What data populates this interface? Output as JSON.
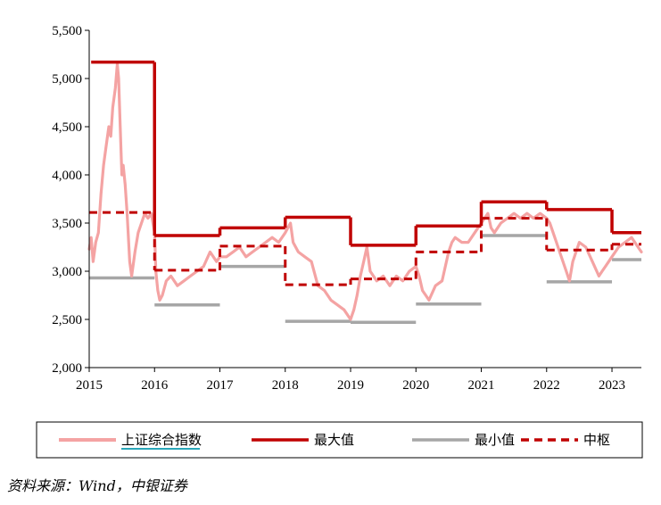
{
  "chart_data": {
    "type": "line",
    "title": "",
    "xlabel": "",
    "ylabel": "",
    "xlim": [
      2015,
      2023.45
    ],
    "ylim": [
      2000,
      5500
    ],
    "yticks": [
      2000,
      2500,
      3000,
      3500,
      4000,
      4500,
      5000,
      5500
    ],
    "ytick_labels": [
      "2,000",
      "2,500",
      "3,000",
      "3,500",
      "4,000",
      "4,500",
      "5,000",
      "5,500"
    ],
    "xticks": [
      2015,
      2016,
      2017,
      2018,
      2019,
      2020,
      2021,
      2022,
      2023
    ],
    "xtick_labels": [
      "2015",
      "2016",
      "2017",
      "2018",
      "2019",
      "2020",
      "2021",
      "2022",
      "2023"
    ],
    "grid": false,
    "legend_position": "bottom",
    "series": [
      {
        "name": "上证综合指数",
        "color": "#f4a3a3",
        "style": "solid-thick",
        "points": [
          [
            2015.0,
            3230
          ],
          [
            2015.03,
            3350
          ],
          [
            2015.06,
            3100
          ],
          [
            2015.1,
            3300
          ],
          [
            2015.14,
            3400
          ],
          [
            2015.18,
            3800
          ],
          [
            2015.22,
            4100
          ],
          [
            2015.26,
            4300
          ],
          [
            2015.3,
            4500
          ],
          [
            2015.33,
            4400
          ],
          [
            2015.36,
            4700
          ],
          [
            2015.4,
            4900
          ],
          [
            2015.43,
            5150
          ],
          [
            2015.45,
            5000
          ],
          [
            2015.47,
            4600
          ],
          [
            2015.5,
            4000
          ],
          [
            2015.52,
            4100
          ],
          [
            2015.55,
            3900
          ],
          [
            2015.58,
            3600
          ],
          [
            2015.62,
            3100
          ],
          [
            2015.65,
            2950
          ],
          [
            2015.7,
            3200
          ],
          [
            2015.75,
            3400
          ],
          [
            2015.8,
            3500
          ],
          [
            2015.85,
            3600
          ],
          [
            2015.9,
            3550
          ],
          [
            2015.95,
            3600
          ],
          [
            2016.0,
            3400
          ],
          [
            2016.02,
            3000
          ],
          [
            2016.05,
            2800
          ],
          [
            2016.08,
            2700
          ],
          [
            2016.12,
            2750
          ],
          [
            2016.18,
            2900
          ],
          [
            2016.25,
            2950
          ],
          [
            2016.35,
            2850
          ],
          [
            2016.45,
            2900
          ],
          [
            2016.55,
            2950
          ],
          [
            2016.65,
            3000
          ],
          [
            2016.75,
            3050
          ],
          [
            2016.85,
            3200
          ],
          [
            2016.95,
            3100
          ],
          [
            2017.0,
            3150
          ],
          [
            2017.1,
            3150
          ],
          [
            2017.2,
            3200
          ],
          [
            2017.3,
            3250
          ],
          [
            2017.4,
            3150
          ],
          [
            2017.5,
            3200
          ],
          [
            2017.6,
            3250
          ],
          [
            2017.7,
            3300
          ],
          [
            2017.8,
            3350
          ],
          [
            2017.9,
            3300
          ],
          [
            2018.0,
            3400
          ],
          [
            2018.08,
            3500
          ],
          [
            2018.12,
            3300
          ],
          [
            2018.2,
            3200
          ],
          [
            2018.3,
            3150
          ],
          [
            2018.4,
            3100
          ],
          [
            2018.5,
            2850
          ],
          [
            2018.6,
            2800
          ],
          [
            2018.7,
            2700
          ],
          [
            2018.8,
            2650
          ],
          [
            2018.9,
            2600
          ],
          [
            2019.0,
            2500
          ],
          [
            2019.05,
            2600
          ],
          [
            2019.1,
            2750
          ],
          [
            2019.15,
            2950
          ],
          [
            2019.2,
            3100
          ],
          [
            2019.25,
            3250
          ],
          [
            2019.3,
            3000
          ],
          [
            2019.4,
            2900
          ],
          [
            2019.5,
            2950
          ],
          [
            2019.6,
            2850
          ],
          [
            2019.7,
            2950
          ],
          [
            2019.8,
            2900
          ],
          [
            2019.9,
            3000
          ],
          [
            2020.0,
            3050
          ],
          [
            2020.05,
            2950
          ],
          [
            2020.1,
            2800
          ],
          [
            2020.15,
            2750
          ],
          [
            2020.2,
            2700
          ],
          [
            2020.3,
            2850
          ],
          [
            2020.4,
            2900
          ],
          [
            2020.5,
            3200
          ],
          [
            2020.55,
            3300
          ],
          [
            2020.6,
            3350
          ],
          [
            2020.7,
            3300
          ],
          [
            2020.8,
            3300
          ],
          [
            2020.9,
            3400
          ],
          [
            2021.0,
            3500
          ],
          [
            2021.1,
            3600
          ],
          [
            2021.15,
            3450
          ],
          [
            2021.2,
            3400
          ],
          [
            2021.3,
            3500
          ],
          [
            2021.4,
            3550
          ],
          [
            2021.5,
            3600
          ],
          [
            2021.6,
            3550
          ],
          [
            2021.7,
            3600
          ],
          [
            2021.8,
            3550
          ],
          [
            2021.9,
            3600
          ],
          [
            2022.0,
            3550
          ],
          [
            2022.05,
            3500
          ],
          [
            2022.1,
            3400
          ],
          [
            2022.15,
            3300
          ],
          [
            2022.2,
            3200
          ],
          [
            2022.3,
            3000
          ],
          [
            2022.35,
            2900
          ],
          [
            2022.4,
            3100
          ],
          [
            2022.5,
            3300
          ],
          [
            2022.6,
            3250
          ],
          [
            2022.7,
            3100
          ],
          [
            2022.8,
            2950
          ],
          [
            2022.85,
            3000
          ],
          [
            2022.9,
            3050
          ],
          [
            2022.95,
            3100
          ],
          [
            2023.0,
            3150
          ],
          [
            2023.1,
            3250
          ],
          [
            2023.2,
            3300
          ],
          [
            2023.3,
            3350
          ],
          [
            2023.4,
            3250
          ],
          [
            2023.45,
            3200
          ]
        ]
      },
      {
        "name": "最大值",
        "color": "#c00000",
        "style": "solid",
        "segments": [
          [
            2015.03,
            2016.0,
            5170
          ],
          [
            2016.0,
            2017.0,
            3370
          ],
          [
            2017.0,
            2018.0,
            3450
          ],
          [
            2018.0,
            2019.0,
            3560
          ],
          [
            2019.0,
            2020.0,
            3270
          ],
          [
            2020.0,
            2021.0,
            3470
          ],
          [
            2021.0,
            2022.0,
            3720
          ],
          [
            2022.0,
            2023.0,
            3640
          ],
          [
            2023.0,
            2023.45,
            3400
          ]
        ]
      },
      {
        "name": "最小值",
        "color": "#a6a6a6",
        "style": "solid",
        "segments": [
          [
            2015.0,
            2016.0,
            2930
          ],
          [
            2016.0,
            2017.0,
            2650
          ],
          [
            2017.0,
            2018.0,
            3050
          ],
          [
            2018.0,
            2019.0,
            2480
          ],
          [
            2019.0,
            2020.0,
            2470
          ],
          [
            2020.0,
            2021.0,
            2660
          ],
          [
            2021.0,
            2022.0,
            3370
          ],
          [
            2022.0,
            2023.0,
            2890
          ],
          [
            2023.0,
            2023.45,
            3120
          ]
        ]
      },
      {
        "name": "中枢",
        "color": "#c00000",
        "style": "dashed",
        "segments": [
          [
            2015.0,
            2016.0,
            3610
          ],
          [
            2016.0,
            2017.0,
            3010
          ],
          [
            2017.0,
            2018.0,
            3260
          ],
          [
            2018.0,
            2019.0,
            2860
          ],
          [
            2019.0,
            2020.0,
            2920
          ],
          [
            2020.0,
            2021.0,
            3200
          ],
          [
            2021.0,
            2022.0,
            3550
          ],
          [
            2022.0,
            2023.0,
            3220
          ],
          [
            2023.0,
            2023.45,
            3280
          ]
        ]
      }
    ]
  },
  "legend": {
    "items": [
      "上证综合指数",
      "最大值",
      "最小值",
      "中枢"
    ]
  },
  "source_text": "资料来源：Wind，中银证券"
}
